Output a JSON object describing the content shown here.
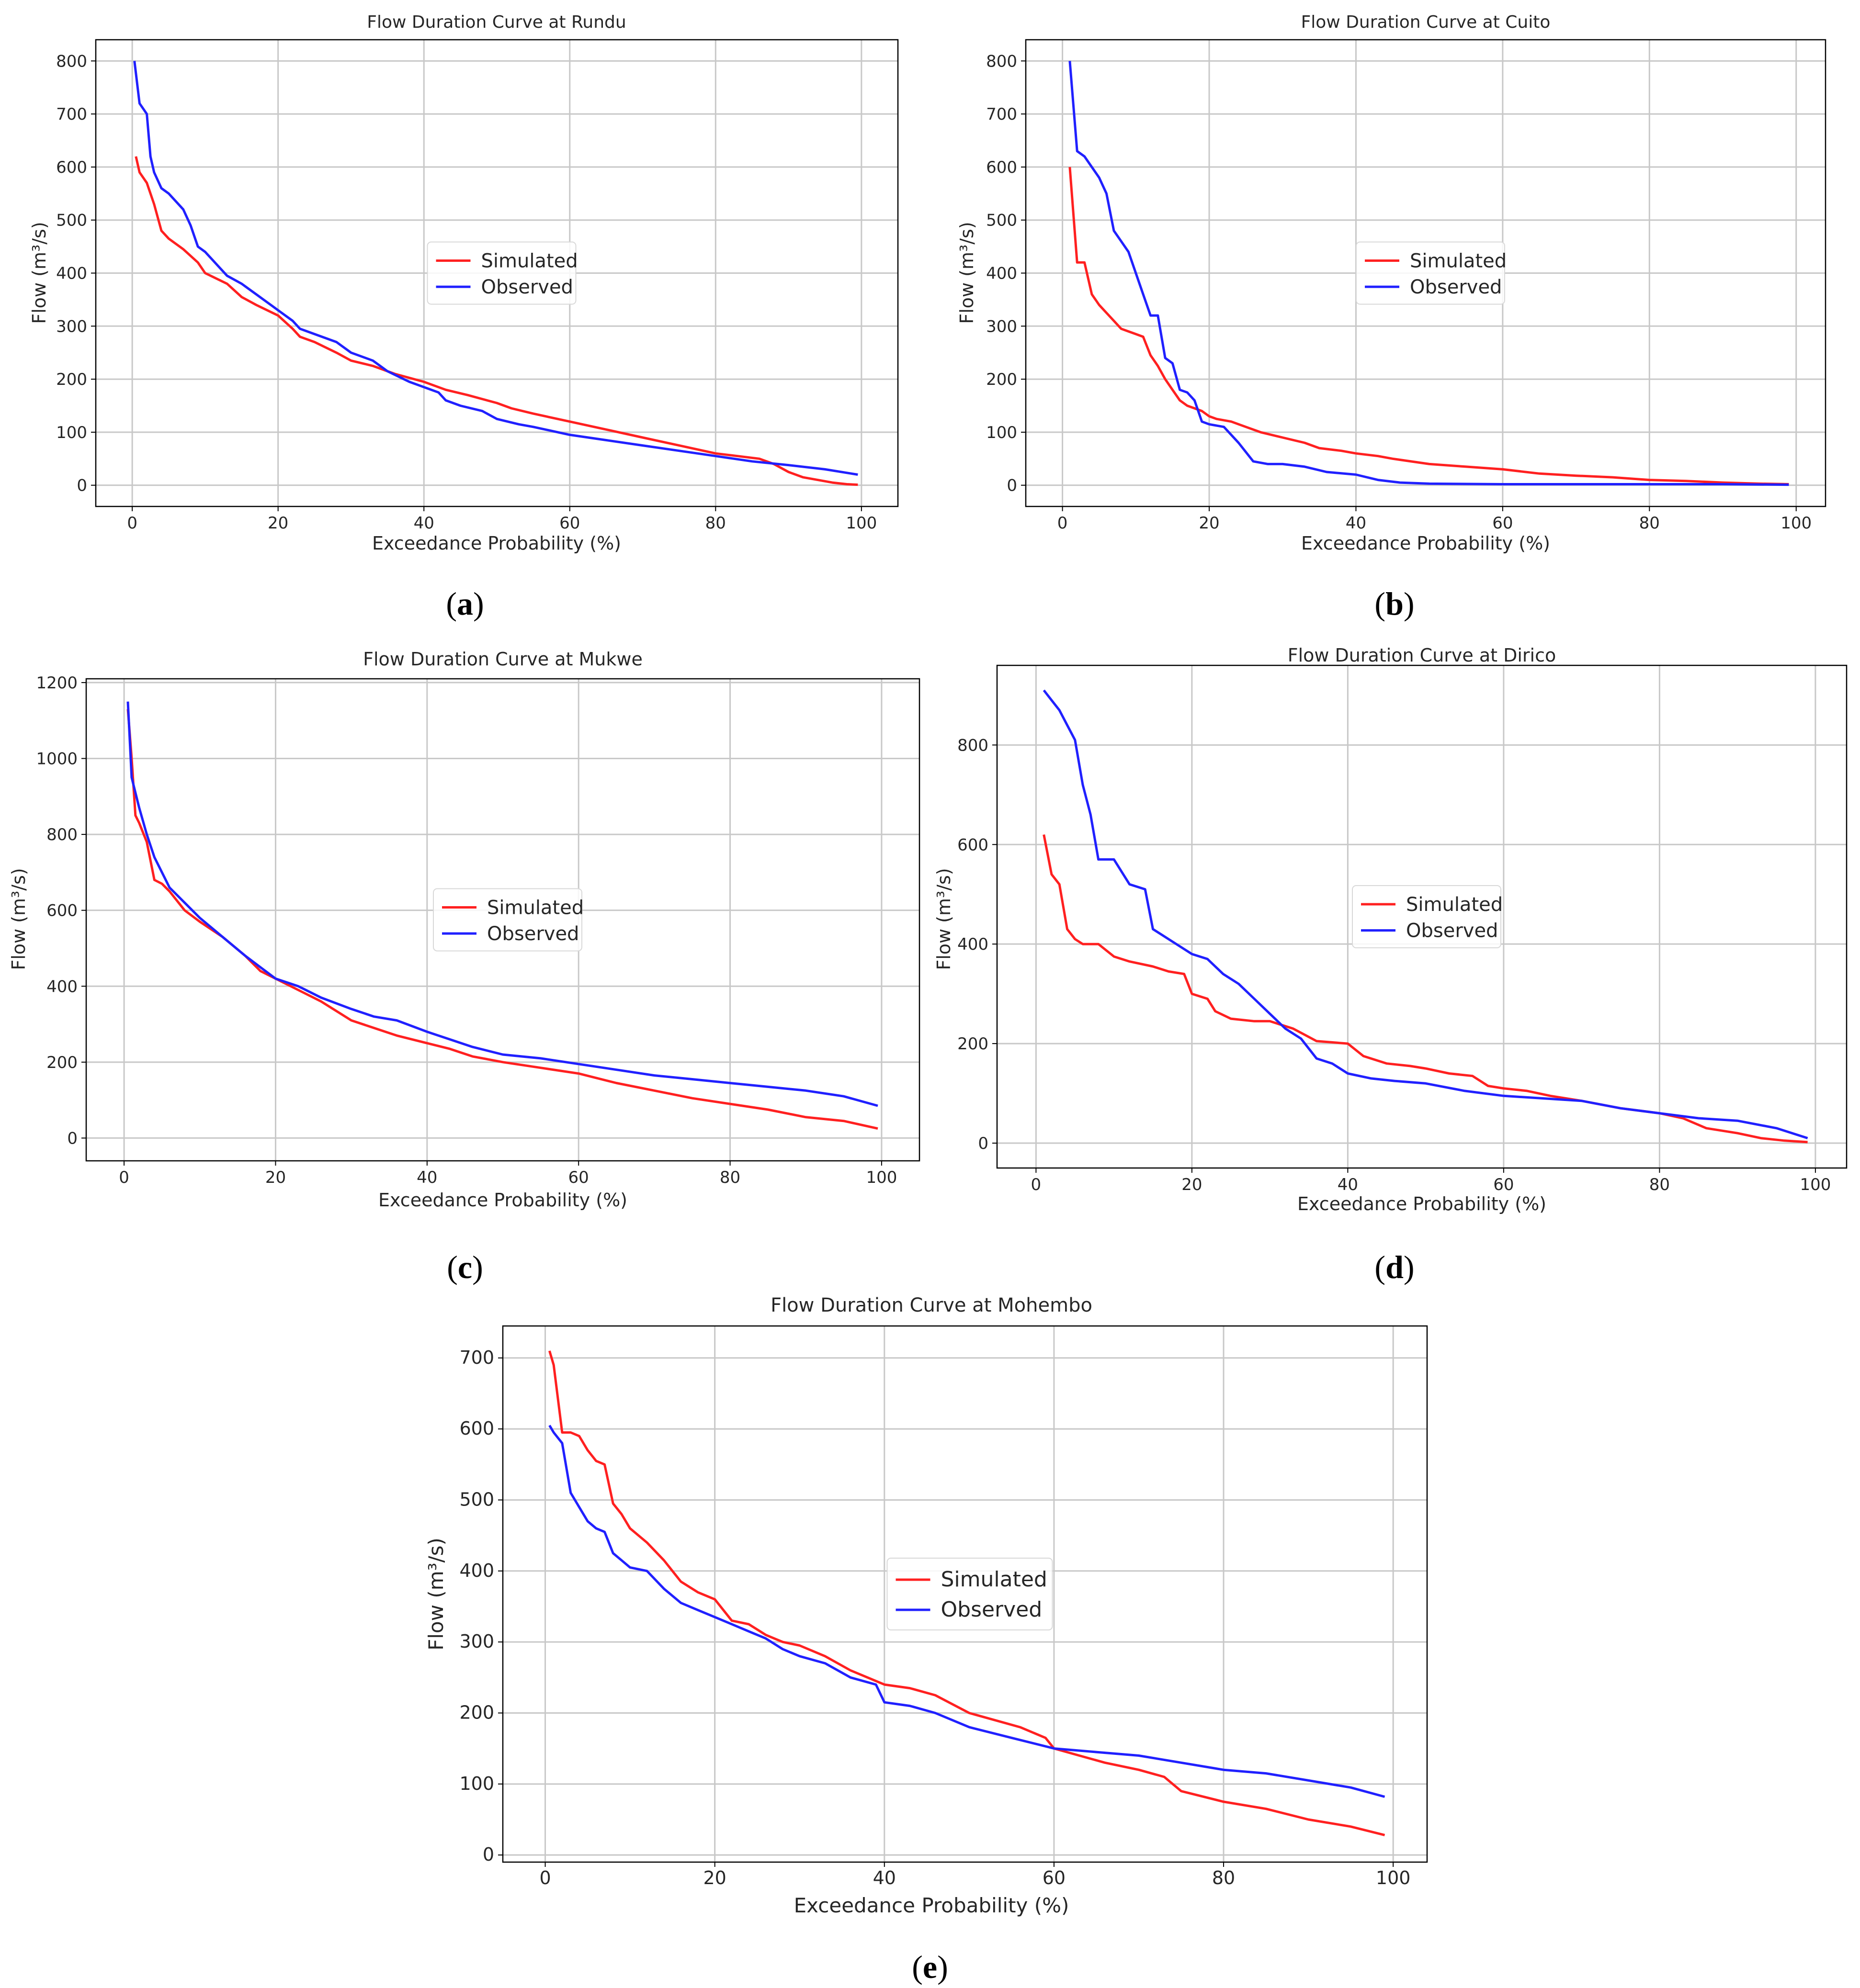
{
  "chart_data": [
    {
      "id": "a",
      "type": "line",
      "caption_letter": "a",
      "title": "Flow Duration Curve at Rundu",
      "xlabel": "Exceedance Probability (%)",
      "ylabel": "Flow (m³/s)",
      "xlim": [
        -5,
        105
      ],
      "ylim": [
        -40,
        840
      ],
      "xticks": [
        0,
        20,
        40,
        60,
        80,
        100
      ],
      "yticks": [
        0,
        100,
        200,
        300,
        400,
        500,
        600,
        700,
        800
      ],
      "grid": true,
      "legend": "center",
      "series": [
        {
          "name": "Simulated",
          "color": "#ff2020",
          "x": [
            0.5,
            1,
            2,
            3,
            4,
            5,
            7,
            9,
            10,
            13,
            15,
            17,
            20,
            22,
            23,
            25,
            28,
            30,
            33,
            36,
            40,
            43,
            46,
            50,
            52,
            55,
            60,
            65,
            70,
            75,
            80,
            83,
            86,
            88,
            90,
            92,
            94,
            96,
            98,
            99.5
          ],
          "y": [
            620,
            590,
            570,
            530,
            480,
            465,
            445,
            420,
            400,
            380,
            355,
            340,
            320,
            295,
            280,
            270,
            250,
            235,
            225,
            210,
            195,
            180,
            170,
            155,
            145,
            135,
            120,
            105,
            90,
            75,
            60,
            55,
            50,
            40,
            25,
            15,
            10,
            5,
            2,
            1
          ]
        },
        {
          "name": "Observed",
          "color": "#2020ff",
          "x": [
            0.3,
            1,
            1.5,
            2,
            2.5,
            3,
            4,
            5,
            7,
            8,
            9,
            10,
            12,
            13,
            15,
            17,
            19,
            20,
            22,
            23,
            25,
            28,
            30,
            33,
            35,
            38,
            40,
            42,
            43,
            45,
            48,
            50,
            53,
            55,
            60,
            65,
            70,
            75,
            80,
            85,
            90,
            95,
            99.5
          ],
          "y": [
            800,
            720,
            710,
            700,
            620,
            590,
            560,
            550,
            520,
            490,
            450,
            440,
            410,
            395,
            380,
            360,
            340,
            330,
            310,
            295,
            285,
            270,
            250,
            235,
            215,
            195,
            185,
            175,
            160,
            150,
            140,
            125,
            115,
            110,
            95,
            85,
            75,
            65,
            55,
            45,
            38,
            30,
            20
          ]
        }
      ]
    },
    {
      "id": "b",
      "type": "line",
      "caption_letter": "b",
      "title": "Flow Duration Curve at Cuito",
      "xlabel": "Exceedance Probability (%)",
      "ylabel": "Flow (m³/s)",
      "xlim": [
        -5,
        104
      ],
      "ylim": [
        -40,
        840
      ],
      "xticks": [
        0,
        20,
        40,
        60,
        80,
        100
      ],
      "yticks": [
        0,
        100,
        200,
        300,
        400,
        500,
        600,
        700,
        800
      ],
      "grid": true,
      "legend": "center",
      "series": [
        {
          "name": "Simulated",
          "color": "#ff2020",
          "x": [
            1,
            2,
            3,
            4,
            5,
            6,
            7,
            8,
            9,
            10,
            11,
            12,
            13,
            14,
            15,
            16,
            17,
            18,
            19,
            20,
            21,
            23,
            25,
            27,
            30,
            33,
            35,
            38,
            40,
            43,
            45,
            50,
            55,
            60,
            65,
            70,
            75,
            80,
            85,
            90,
            95,
            99
          ],
          "y": [
            600,
            420,
            420,
            360,
            340,
            325,
            310,
            295,
            290,
            285,
            280,
            245,
            225,
            200,
            180,
            160,
            150,
            145,
            140,
            130,
            125,
            120,
            110,
            100,
            90,
            80,
            70,
            65,
            60,
            55,
            50,
            40,
            35,
            30,
            22,
            18,
            15,
            10,
            8,
            5,
            3,
            2
          ]
        },
        {
          "name": "Observed",
          "color": "#2020ff",
          "x": [
            1,
            2,
            3,
            4,
            5,
            6,
            7,
            8,
            9,
            10,
            11,
            12,
            13,
            14,
            15,
            16,
            17,
            18,
            19,
            20,
            22,
            24,
            26,
            28,
            30,
            33,
            36,
            40,
            43,
            46,
            50,
            60,
            70,
            80,
            90,
            99
          ],
          "y": [
            800,
            630,
            620,
            600,
            580,
            550,
            480,
            460,
            440,
            400,
            360,
            320,
            320,
            240,
            230,
            180,
            175,
            160,
            120,
            115,
            110,
            80,
            45,
            40,
            40,
            35,
            25,
            20,
            10,
            5,
            3,
            2,
            2,
            2,
            2,
            1
          ]
        }
      ]
    },
    {
      "id": "c",
      "type": "line",
      "caption_letter": "c",
      "title": "Flow Duration Curve at Mukwe",
      "xlabel": "Exceedance Probability (%)",
      "ylabel": "Flow (m³/s)",
      "xlim": [
        -5,
        105
      ],
      "ylim": [
        -60,
        1210
      ],
      "xticks": [
        0,
        20,
        40,
        60,
        80,
        100
      ],
      "yticks": [
        0,
        200,
        400,
        600,
        800,
        1000,
        1200
      ],
      "grid": true,
      "legend": "center",
      "series": [
        {
          "name": "Simulated",
          "color": "#ff2020",
          "x": [
            0.5,
            1,
            1.5,
            2,
            3,
            4,
            5,
            6,
            8,
            10,
            13,
            16,
            18,
            20,
            23,
            26,
            30,
            33,
            36,
            40,
            43,
            46,
            50,
            55,
            60,
            65,
            70,
            75,
            80,
            85,
            90,
            95,
            99.5
          ],
          "y": [
            1130,
            1000,
            850,
            830,
            780,
            680,
            670,
            650,
            600,
            570,
            530,
            480,
            440,
            420,
            390,
            360,
            310,
            290,
            270,
            250,
            235,
            215,
            200,
            185,
            170,
            145,
            125,
            105,
            90,
            75,
            55,
            45,
            25
          ]
        },
        {
          "name": "Observed",
          "color": "#2020ff",
          "x": [
            0.5,
            1,
            2,
            3,
            4,
            5,
            6,
            8,
            10,
            13,
            16,
            18,
            20,
            23,
            26,
            30,
            33,
            36,
            40,
            43,
            46,
            50,
            55,
            60,
            65,
            70,
            75,
            80,
            85,
            90,
            95,
            99.5
          ],
          "y": [
            1150,
            950,
            870,
            800,
            740,
            700,
            660,
            620,
            580,
            530,
            480,
            450,
            420,
            400,
            370,
            340,
            320,
            310,
            280,
            260,
            240,
            220,
            210,
            195,
            180,
            165,
            155,
            145,
            135,
            125,
            110,
            85
          ]
        }
      ]
    },
    {
      "id": "d",
      "type": "line",
      "caption_letter": "d",
      "title": "Flow Duration Curve at Dirico",
      "xlabel": "Exceedance Probability (%)",
      "ylabel": "Flow (m³/s)",
      "xlim": [
        -5,
        104
      ],
      "ylim": [
        -50,
        960
      ],
      "xticks": [
        0,
        20,
        40,
        60,
        80,
        100
      ],
      "yticks": [
        0,
        200,
        400,
        600,
        800
      ],
      "grid": true,
      "legend": "center",
      "series": [
        {
          "name": "Simulated",
          "color": "#ff2020",
          "x": [
            1,
            2,
            3,
            4,
            5,
            6,
            8,
            10,
            12,
            15,
            17,
            19,
            20,
            22,
            23,
            25,
            28,
            30,
            33,
            36,
            40,
            42,
            45,
            48,
            50,
            53,
            56,
            58,
            60,
            63,
            66,
            70,
            75,
            80,
            83,
            86,
            90,
            93,
            96,
            99
          ],
          "y": [
            620,
            540,
            520,
            430,
            410,
            400,
            400,
            375,
            365,
            355,
            345,
            340,
            300,
            290,
            265,
            250,
            245,
            245,
            230,
            205,
            200,
            175,
            160,
            155,
            150,
            140,
            135,
            115,
            110,
            105,
            95,
            85,
            70,
            60,
            50,
            30,
            20,
            10,
            5,
            2
          ]
        },
        {
          "name": "Observed",
          "color": "#2020ff",
          "x": [
            1,
            2,
            3,
            4,
            5,
            6,
            7,
            8,
            10,
            12,
            14,
            15,
            16,
            18,
            20,
            22,
            24,
            26,
            28,
            30,
            32,
            34,
            36,
            38,
            40,
            43,
            46,
            50,
            55,
            60,
            65,
            70,
            75,
            80,
            85,
            90,
            95,
            99
          ],
          "y": [
            910,
            890,
            870,
            840,
            810,
            720,
            660,
            570,
            570,
            520,
            510,
            430,
            420,
            400,
            380,
            370,
            340,
            320,
            290,
            260,
            230,
            210,
            170,
            160,
            140,
            130,
            125,
            120,
            105,
            95,
            90,
            85,
            70,
            60,
            50,
            45,
            30,
            10
          ]
        }
      ]
    },
    {
      "id": "e",
      "type": "line",
      "caption_letter": "e",
      "title": "Flow Duration Curve at Mohembo",
      "xlabel": "Exceedance Probability (%)",
      "ylabel": "Flow (m³/s)",
      "xlim": [
        -5,
        104
      ],
      "ylim": [
        -10,
        745
      ],
      "xticks": [
        0,
        20,
        40,
        60,
        80,
        100
      ],
      "yticks": [
        0,
        100,
        200,
        300,
        400,
        500,
        600,
        700
      ],
      "grid": true,
      "legend": "center",
      "series": [
        {
          "name": "Simulated",
          "color": "#ff2020",
          "x": [
            0.5,
            1,
            2,
            3,
            4,
            5,
            6,
            7,
            8,
            9,
            10,
            12,
            14,
            16,
            18,
            20,
            22,
            24,
            26,
            28,
            30,
            33,
            36,
            40,
            43,
            46,
            50,
            53,
            56,
            59,
            60,
            63,
            66,
            70,
            73,
            75,
            80,
            85,
            90,
            95,
            99
          ],
          "y": [
            710,
            690,
            595,
            595,
            590,
            570,
            555,
            550,
            495,
            480,
            460,
            440,
            415,
            385,
            370,
            360,
            330,
            325,
            310,
            300,
            295,
            280,
            260,
            240,
            235,
            225,
            200,
            190,
            180,
            165,
            150,
            140,
            130,
            120,
            110,
            90,
            75,
            65,
            50,
            40,
            28
          ]
        },
        {
          "name": "Observed",
          "color": "#2020ff",
          "x": [
            0.5,
            1,
            2,
            3,
            4,
            5,
            6,
            7,
            8,
            9,
            10,
            12,
            14,
            16,
            18,
            20,
            22,
            24,
            26,
            28,
            30,
            33,
            36,
            39,
            40,
            43,
            46,
            50,
            55,
            60,
            65,
            70,
            75,
            80,
            85,
            90,
            95,
            99
          ],
          "y": [
            605,
            595,
            580,
            510,
            490,
            470,
            460,
            455,
            425,
            415,
            405,
            400,
            375,
            355,
            345,
            335,
            325,
            315,
            305,
            290,
            280,
            270,
            250,
            240,
            215,
            210,
            200,
            180,
            165,
            150,
            145,
            140,
            130,
            120,
            115,
            105,
            95,
            82
          ]
        }
      ]
    }
  ]
}
